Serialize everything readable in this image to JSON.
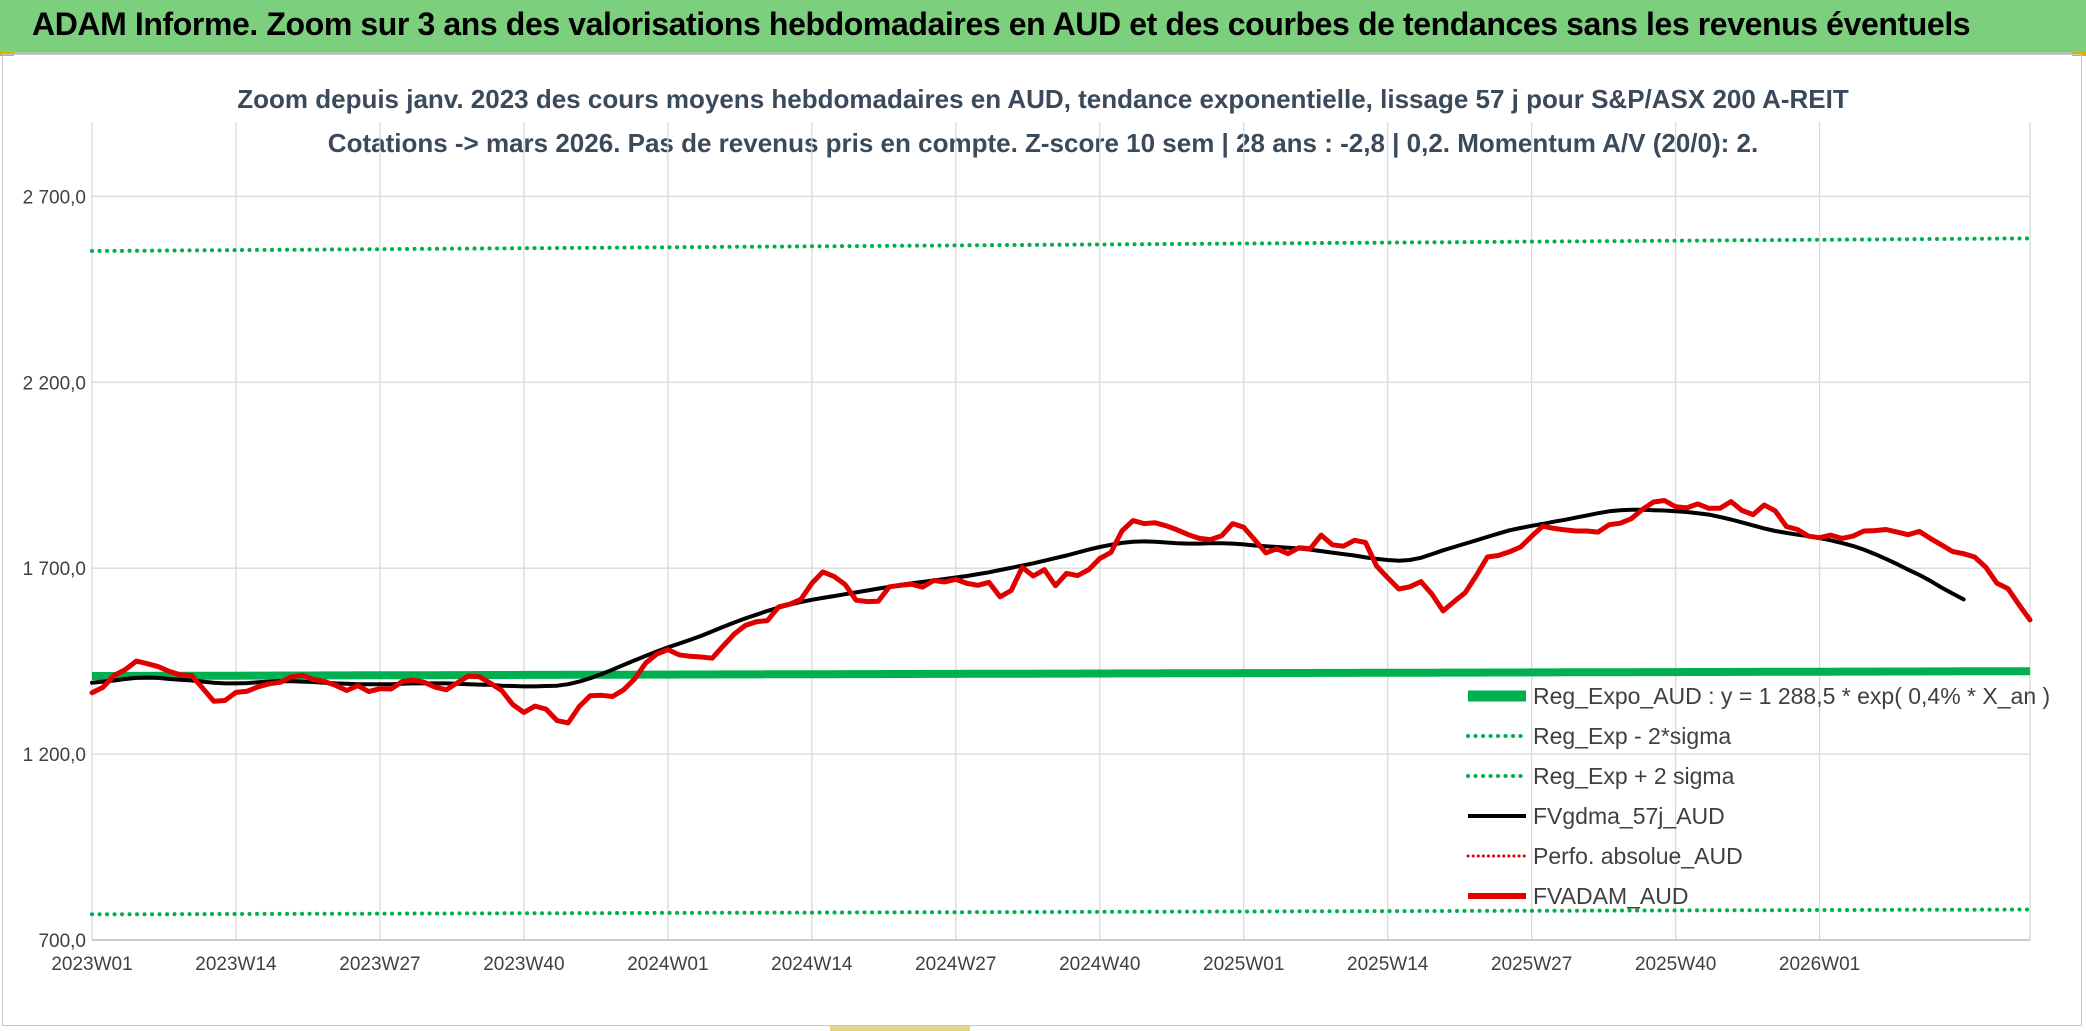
{
  "banner": {
    "title": "ADAM Informe. Zoom sur 3 ans des valorisations hebdomadaires en AUD et des courbes de tendances sans les revenus éventuels"
  },
  "chart_data": {
    "type": "line",
    "title": "Zoom depuis janv. 2023 des cours moyens hebdomadaires en AUD, tendance exponentielle, lissage 57 j pour S&P/ASX 200 A-REIT",
    "subtitle": "Cotations -> mars 2026. Pas de revenus pris en compte. Z-score 10 sem | 28 ans : -2,8 | 0,2. Momentum A/V (20/0): 2.",
    "ylim": [
      700,
      2900
    ],
    "yticks": [
      "700,0",
      "1 200,0",
      "1 700,0",
      "2 200,0",
      "2 700,0"
    ],
    "ytick_values": [
      700,
      1200,
      1700,
      2200,
      2700
    ],
    "x_ticks": [
      "2023W01",
      "2023W14",
      "2023W27",
      "2023W40",
      "2024W01",
      "2024W14",
      "2024W27",
      "2024W40",
      "2025W01",
      "2025W14",
      "2025W27",
      "2025W40",
      "2026W01"
    ],
    "x_tick_index": [
      0,
      13,
      26,
      39,
      52,
      65,
      78,
      91,
      104,
      117,
      130,
      143,
      156
    ],
    "grid": true,
    "legend_position": "bottom-right",
    "series": [
      {
        "name": "Reg_Expo_AUD : y = 1 288,5 * exp( 0,4% * X_an )",
        "style": "thick-solid",
        "color": "#00b050",
        "start": 1410,
        "end": 1423
      },
      {
        "name": "Reg_Exp - 2*sigma",
        "style": "dotted",
        "color": "#00b050",
        "start": 769,
        "end": 782
      },
      {
        "name": "Reg_Exp + 2 sigma",
        "style": "dotted",
        "color": "#00b050",
        "start": 2553,
        "end": 2587
      },
      {
        "name": "FVgdma_57j_AUD",
        "style": "solid",
        "color": "#000000",
        "values": [
          1392,
          1395,
          1398,
          1402,
          1405,
          1406,
          1405,
          1402,
          1400,
          1398,
          1395,
          1392,
          1390,
          1390,
          1391,
          1393,
          1395,
          1396,
          1396,
          1395,
          1394,
          1392,
          1390,
          1389,
          1388,
          1388,
          1388,
          1388,
          1389,
          1390,
          1390,
          1390,
          1390,
          1389,
          1388,
          1387,
          1386,
          1384,
          1383,
          1382,
          1382,
          1383,
          1384,
          1388,
          1395,
          1404,
          1415,
          1427,
          1440,
          1452,
          1464,
          1476,
          1487,
          1497,
          1507,
          1518,
          1530,
          1542,
          1554,
          1565,
          1575,
          1585,
          1594,
          1602,
          1609,
          1615,
          1620,
          1625,
          1630,
          1635,
          1640,
          1645,
          1650,
          1655,
          1659,
          1663,
          1667,
          1671,
          1675,
          1679,
          1684,
          1689,
          1695,
          1701,
          1707,
          1713,
          1720,
          1727,
          1734,
          1742,
          1750,
          1757,
          1763,
          1768,
          1771,
          1772,
          1771,
          1769,
          1767,
          1766,
          1766,
          1767,
          1767,
          1766,
          1764,
          1761,
          1759,
          1757,
          1755,
          1753,
          1750,
          1746,
          1742,
          1738,
          1734,
          1729,
          1725,
          1722,
          1720,
          1722,
          1728,
          1738,
          1748,
          1757,
          1766,
          1775,
          1784,
          1793,
          1802,
          1808,
          1814,
          1819,
          1825,
          1830,
          1836,
          1842,
          1848,
          1853,
          1856,
          1857,
          1857,
          1856,
          1855,
          1853,
          1851,
          1848,
          1844,
          1838,
          1831,
          1823,
          1815,
          1807,
          1800,
          1795,
          1790,
          1786,
          1781,
          1775,
          1768,
          1760,
          1750,
          1738,
          1725,
          1711,
          1696,
          1682,
          1666,
          1648,
          1632,
          1616
        ]
      },
      {
        "name": "Perfo. absolue_AUD",
        "style": "dotted",
        "color": "#e00000",
        "values": []
      },
      {
        "name": "FVADAM_AUD",
        "style": "thick-solid",
        "color": "#e00000",
        "values": [
          1365,
          1380,
          1412,
          1427,
          1450,
          1443,
          1435,
          1422,
          1413,
          1411,
          1377,
          1342,
          1344,
          1366,
          1369,
          1381,
          1389,
          1393,
          1408,
          1412,
          1401,
          1395,
          1385,
          1371,
          1384,
          1368,
          1376,
          1375,
          1395,
          1399,
          1393,
          1380,
          1373,
          1392,
          1410,
          1408,
          1390,
          1371,
          1333,
          1312,
          1329,
          1321,
          1290,
          1284,
          1328,
          1357,
          1358,
          1355,
          1373,
          1402,
          1445,
          1469,
          1481,
          1467,
          1463,
          1461,
          1458,
          1491,
          1523,
          1546,
          1556,
          1559,
          1596,
          1603,
          1616,
          1659,
          1690,
          1678,
          1656,
          1614,
          1610,
          1611,
          1650,
          1654,
          1657,
          1649,
          1667,
          1663,
          1670,
          1659,
          1654,
          1662,
          1623,
          1640,
          1702,
          1679,
          1696,
          1653,
          1686,
          1680,
          1696,
          1726,
          1742,
          1800,
          1828,
          1820,
          1822,
          1814,
          1803,
          1790,
          1780,
          1777,
          1787,
          1820,
          1810,
          1776,
          1741,
          1752,
          1739,
          1755,
          1752,
          1789,
          1763,
          1759,
          1775,
          1769,
          1706,
          1674,
          1644,
          1650,
          1664,
          1630,
          1585,
          1610,
          1634,
          1680,
          1730,
          1734,
          1744,
          1757,
          1786,
          1813,
          1807,
          1803,
          1800,
          1800,
          1797,
          1817,
          1821,
          1833,
          1858,
          1878,
          1882,
          1865,
          1862,
          1873,
          1861,
          1861,
          1879,
          1855,
          1844,
          1870,
          1854,
          1812,
          1804,
          1786,
          1782,
          1789,
          1780,
          1786,
          1800,
          1801,
          1804,
          1797,
          1790,
          1799,
          1780,
          1763,
          1745,
          1739,
          1730,
          1703,
          1660,
          1645,
          1602,
          1561
        ]
      }
    ]
  }
}
